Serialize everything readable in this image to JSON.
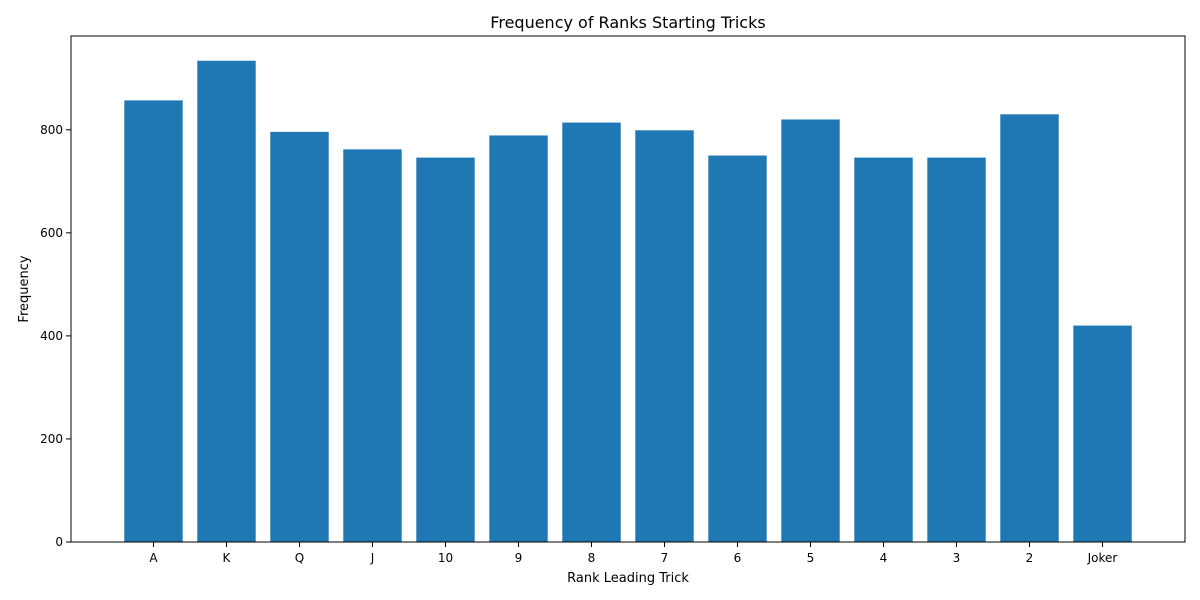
{
  "chart_data": {
    "type": "bar",
    "title": "Frequency of Ranks Starting Tricks",
    "xlabel": "Rank Leading Trick",
    "ylabel": "Frequency",
    "categories": [
      "A",
      "K",
      "Q",
      "J",
      "10",
      "9",
      "8",
      "7",
      "6",
      "5",
      "4",
      "3",
      "2",
      "Joker"
    ],
    "values": [
      857,
      934,
      796,
      762,
      746,
      789,
      814,
      799,
      750,
      820,
      746,
      746,
      830,
      420
    ],
    "ylim": [
      0,
      982
    ],
    "yticks": [
      0,
      200,
      400,
      600,
      800
    ],
    "grid": false,
    "bar_color": "#1f77b4"
  }
}
